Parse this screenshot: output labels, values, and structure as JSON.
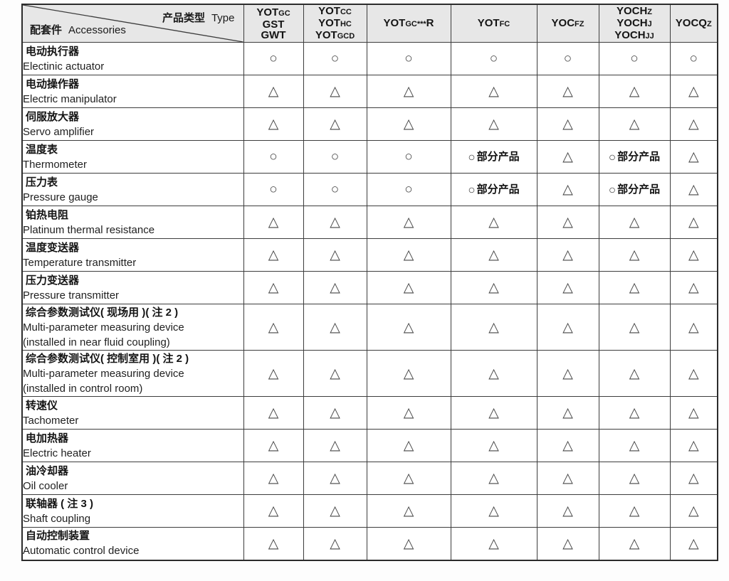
{
  "colors": {
    "header_bg": "#e7e7e7",
    "border": "#3d3d3d",
    "outer_border": "#2c2c2c",
    "text": "#1a1a1a",
    "symbol": "#454545"
  },
  "table": {
    "corner": {
      "type_zh": "产品类型",
      "type_en": "Type",
      "accessories_zh": "配套件",
      "accessories_en": "Accessories"
    },
    "columns": [
      {
        "id": "yot-gc-gst-gwt",
        "lines": [
          [
            {
              "t": "YOT"
            },
            {
              "t": "GC",
              "sub": true
            }
          ],
          [
            {
              "t": "GST"
            }
          ],
          [
            {
              "t": "GWT"
            }
          ]
        ]
      },
      {
        "id": "yot-cc-hc-gcd",
        "lines": [
          [
            {
              "t": "YOT"
            },
            {
              "t": "CC",
              "sub": true
            }
          ],
          [
            {
              "t": "YOT"
            },
            {
              "t": "HC",
              "sub": true
            }
          ],
          [
            {
              "t": "YOT"
            },
            {
              "t": "GCD",
              "sub": true
            }
          ]
        ]
      },
      {
        "id": "yot-gc-r",
        "lines": [
          [
            {
              "t": "YOT"
            },
            {
              "t": "GC",
              "sub": true
            },
            {
              "t": "***",
              "sub": true
            },
            {
              "t": "R"
            }
          ]
        ]
      },
      {
        "id": "yot-fc",
        "lines": [
          [
            {
              "t": "YOT"
            },
            {
              "t": "FC",
              "sub": true
            }
          ]
        ]
      },
      {
        "id": "yoc-fz",
        "lines": [
          [
            {
              "t": "YOC"
            },
            {
              "t": "FZ",
              "sub": true
            }
          ]
        ]
      },
      {
        "id": "yoch-z-j-jj",
        "lines": [
          [
            {
              "t": "YOCH"
            },
            {
              "t": "Z",
              "sub": true
            }
          ],
          [
            {
              "t": "YOCH"
            },
            {
              "t": "J",
              "sub": true
            }
          ],
          [
            {
              "t": "YOCH"
            },
            {
              "t": "JJ",
              "sub": true
            }
          ]
        ]
      },
      {
        "id": "yocq-z",
        "lines": [
          [
            {
              "t": "YOCQ"
            },
            {
              "t": "Z",
              "sub": true
            }
          ]
        ]
      }
    ],
    "symbols": {
      "standard": "○",
      "optional": "△",
      "partial": "○部分产品"
    },
    "rows": [
      {
        "zh": "电动执行器",
        "en": [
          "Electinic actuator"
        ],
        "cells": [
          "○",
          "○",
          "○",
          "○",
          "○",
          "○",
          "○"
        ]
      },
      {
        "zh": "电动操作器",
        "en": [
          "Electric manipulator"
        ],
        "cells": [
          "△",
          "△",
          "△",
          "△",
          "△",
          "△",
          "△"
        ]
      },
      {
        "zh": "伺服放大器",
        "en": [
          "Servo amplifier"
        ],
        "cells": [
          "△",
          "△",
          "△",
          "△",
          "△",
          "△",
          "△"
        ]
      },
      {
        "zh": "温度表",
        "en": [
          "Thermometer"
        ],
        "cells": [
          "○",
          "○",
          "○",
          "○部分产品",
          "△",
          "○部分产品",
          "△"
        ]
      },
      {
        "zh": "压力表",
        "en": [
          "Pressure gauge"
        ],
        "cells": [
          "○",
          "○",
          "○",
          "○部分产品",
          "△",
          "○部分产品",
          "△"
        ]
      },
      {
        "zh": "铂热电阻",
        "en": [
          "Platinum thermal resistance"
        ],
        "cells": [
          "△",
          "△",
          "△",
          "△",
          "△",
          "△",
          "△"
        ]
      },
      {
        "zh": "温度变送器",
        "en": [
          "Temperature transmitter"
        ],
        "cells": [
          "△",
          "△",
          "△",
          "△",
          "△",
          "△",
          "△"
        ]
      },
      {
        "zh": "压力变送器",
        "en": [
          "Pressure transmitter"
        ],
        "cells": [
          "△",
          "△",
          "△",
          "△",
          "△",
          "△",
          "△"
        ]
      },
      {
        "zh": "综合参数测试仪( 现场用 )( 注 2 )",
        "en": [
          "Multi-parameter measuring device",
          "(installed in near fluid coupling)"
        ],
        "cells": [
          "△",
          "△",
          "△",
          "△",
          "△",
          "△",
          "△"
        ]
      },
      {
        "zh": "综合参数测试仪( 控制室用 )( 注 2 )",
        "en": [
          "Multi-parameter measuring device",
          "(installed in control room)"
        ],
        "cells": [
          "△",
          "△",
          "△",
          "△",
          "△",
          "△",
          "△"
        ]
      },
      {
        "zh": "转速仪",
        "en": [
          "Tachometer"
        ],
        "cells": [
          "△",
          "△",
          "△",
          "△",
          "△",
          "△",
          "△"
        ]
      },
      {
        "zh": "电加热器",
        "en": [
          "Electric heater"
        ],
        "cells": [
          "△",
          "△",
          "△",
          "△",
          "△",
          "△",
          "△"
        ]
      },
      {
        "zh": "油冷却器",
        "en": [
          "Oil cooler"
        ],
        "cells": [
          "△",
          "△",
          "△",
          "△",
          "△",
          "△",
          "△"
        ]
      },
      {
        "zh": "联轴器 ( 注 3 )",
        "en": [
          "Shaft coupling"
        ],
        "cells": [
          "△",
          "△",
          "△",
          "△",
          "△",
          "△",
          "△"
        ]
      },
      {
        "zh": "自动控制装置",
        "en": [
          "Automatic control device"
        ],
        "cells": [
          "△",
          "△",
          "△",
          "△",
          "△",
          "△",
          "△"
        ]
      }
    ]
  }
}
